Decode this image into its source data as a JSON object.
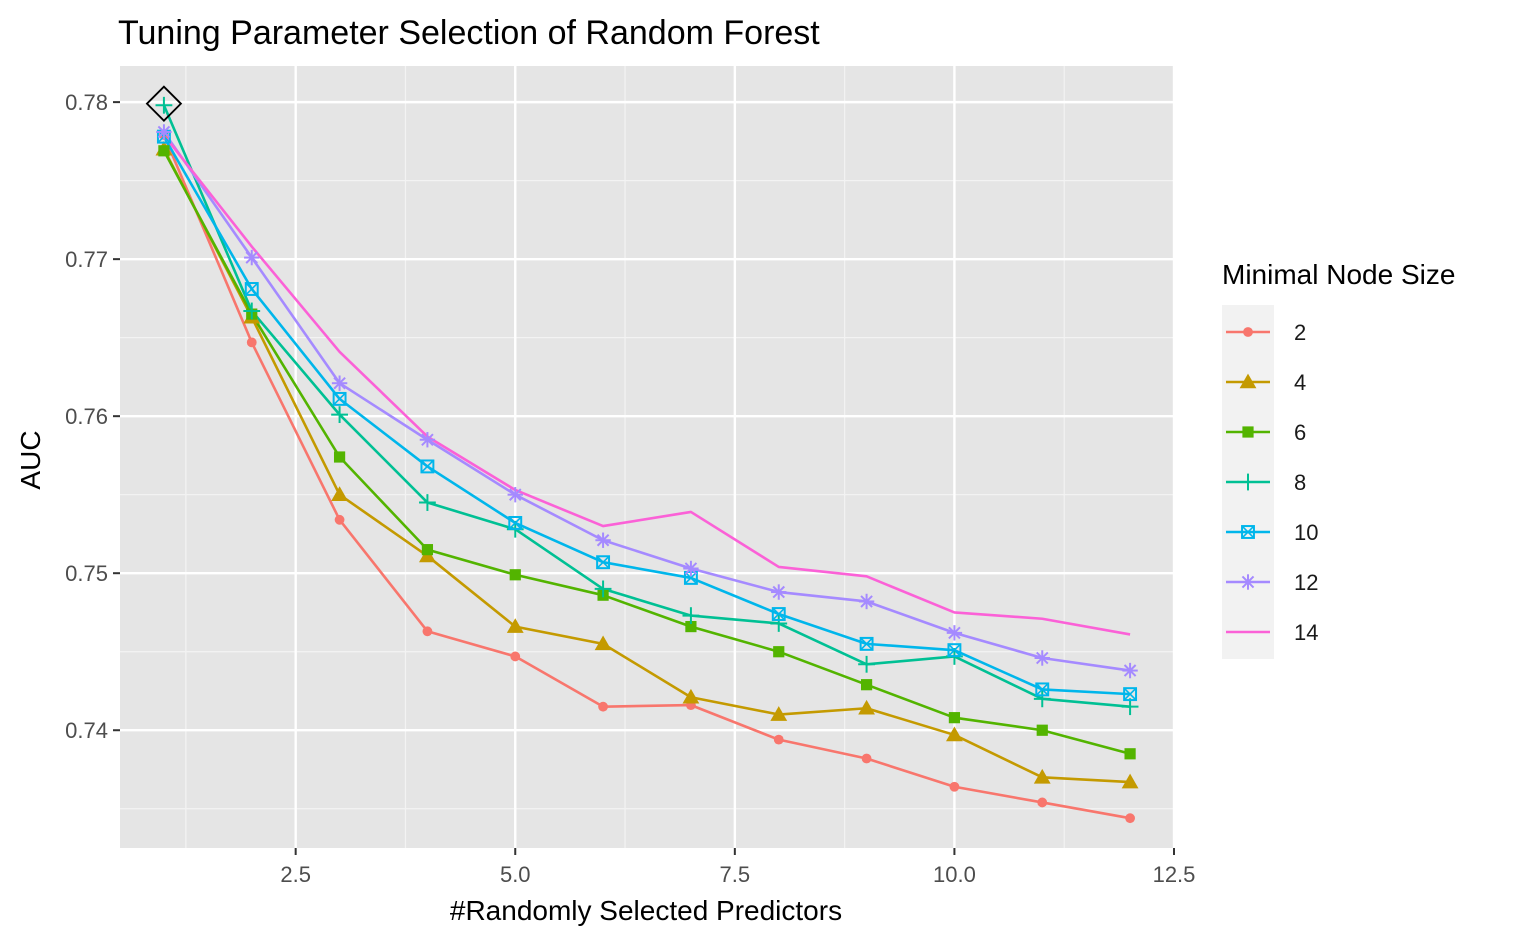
{
  "chart_data": {
    "type": "line",
    "title": "Tuning Parameter Selection of Random Forest",
    "xlabel": "#Randomly Selected Predictors",
    "ylabel": "AUC",
    "xlim": [
      0.5,
      12.5
    ],
    "ylim": [
      0.7325,
      0.7823
    ],
    "x_ticks": [
      2.5,
      5.0,
      7.5,
      10.0,
      12.5
    ],
    "x_tick_labels": [
      "2.5",
      "5.0",
      "7.5",
      "10.0",
      "12.5"
    ],
    "y_ticks": [
      0.74,
      0.75,
      0.76,
      0.77,
      0.78
    ],
    "y_tick_labels": [
      "0.74",
      "0.75",
      "0.76",
      "0.77",
      "0.78"
    ],
    "grid": true,
    "legend_title": "Minimal Node Size",
    "legend_position": "right",
    "x": [
      1,
      2,
      3,
      4,
      5,
      6,
      7,
      8,
      9,
      10,
      11,
      12
    ],
    "series": [
      {
        "name": "2",
        "color": "#F8766D",
        "marker": "circle",
        "values": [
          0.7779,
          0.7647,
          0.7534,
          0.7463,
          0.7447,
          0.7415,
          0.7416,
          0.7394,
          0.7382,
          0.7364,
          0.7354,
          0.7344
        ]
      },
      {
        "name": "4",
        "color": "#C49A00",
        "marker": "triangle",
        "values": [
          0.777,
          0.7663,
          0.755,
          0.7511,
          0.7466,
          0.7455,
          0.7421,
          0.741,
          0.7414,
          0.7397,
          0.737,
          0.7367
        ]
      },
      {
        "name": "6",
        "color": "#53B400",
        "marker": "square",
        "values": [
          0.7769,
          0.7665,
          0.7574,
          0.7515,
          0.7499,
          0.7486,
          0.7466,
          0.745,
          0.7429,
          0.7408,
          0.74,
          0.7385
        ]
      },
      {
        "name": "8",
        "color": "#00C094",
        "marker": "plus",
        "values": [
          0.7798,
          0.7667,
          0.7601,
          0.7545,
          0.7528,
          0.749,
          0.7473,
          0.7468,
          0.7442,
          0.7447,
          0.742,
          0.7415
        ]
      },
      {
        "name": "10",
        "color": "#00B6EB",
        "marker": "square-x",
        "values": [
          0.7778,
          0.7681,
          0.7611,
          0.7568,
          0.7532,
          0.7507,
          0.7497,
          0.7474,
          0.7455,
          0.7451,
          0.7426,
          0.7423
        ]
      },
      {
        "name": "12",
        "color": "#A58AFF",
        "marker": "asterisk",
        "values": [
          0.7781,
          0.7701,
          0.7621,
          0.7585,
          0.755,
          0.7521,
          0.7503,
          0.7488,
          0.7482,
          0.7462,
          0.7446,
          0.7438
        ]
      },
      {
        "name": "14",
        "color": "#FB61D7",
        "marker": "none",
        "values": [
          0.7779,
          0.7708,
          0.7641,
          0.7587,
          0.7553,
          0.753,
          0.7539,
          0.7504,
          0.7498,
          0.7475,
          0.7471,
          0.7461
        ]
      }
    ],
    "highlight": {
      "x": 1,
      "y": 0.7799,
      "marker": "diamond"
    }
  }
}
